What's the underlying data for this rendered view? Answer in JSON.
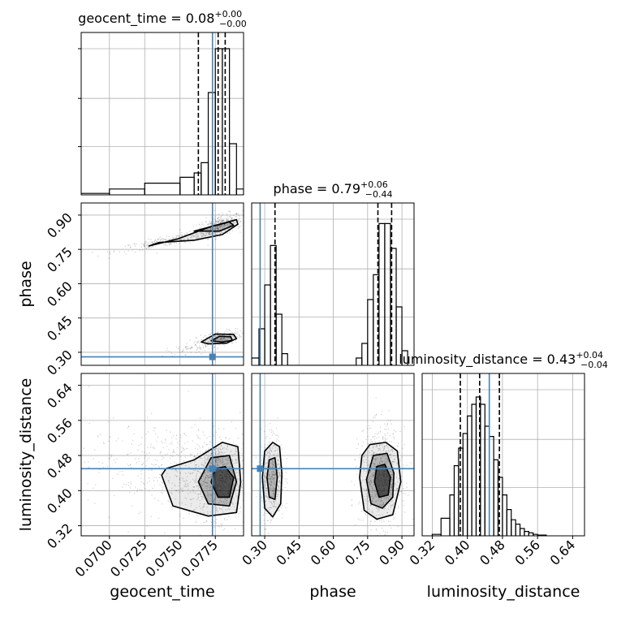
{
  "chart_data": {
    "type": "corner",
    "parameters": [
      "geocent_time",
      "phase",
      "luminosity_distance"
    ],
    "titles": [
      {
        "param": "geocent_time",
        "prefix": "geocent_time = ",
        "median": "0.08",
        "plus": "+0.00",
        "minus": "−0.00"
      },
      {
        "param": "phase",
        "prefix": "phase = ",
        "median": "0.79",
        "plus": "+0.06",
        "minus": "−0.44"
      },
      {
        "param": "luminosity_distance",
        "prefix": "luminosity_distance = ",
        "median": "0.43",
        "plus": "+0.04",
        "minus": "−0.04"
      }
    ],
    "ranges": {
      "geocent_time": [
        0.068,
        0.0795
      ],
      "phase": [
        0.243,
        0.953
      ],
      "luminosity_distance": [
        0.297,
        0.667
      ]
    },
    "ticks": {
      "geocent_time": [
        "0.0700",
        "0.0725",
        "0.0750",
        "0.0775"
      ],
      "phase": [
        "0.30",
        "0.45",
        "0.60",
        "0.75",
        "0.90"
      ],
      "luminosity_distance": [
        "0.32",
        "0.40",
        "0.48",
        "0.56",
        "0.64"
      ]
    },
    "truths": {
      "geocent_time": 0.0773,
      "phase": 0.28,
      "luminosity_distance": 0.45
    },
    "quantiles": {
      "geocent_time": [
        0.0763,
        0.0777,
        0.0782
      ],
      "phase": [
        0.345,
        0.795,
        0.855
      ],
      "luminosity_distance": [
        0.384,
        0.428,
        0.473
      ]
    },
    "histograms": {
      "geocent_time": {
        "edges": [
          0.068,
          0.07,
          0.0725,
          0.075,
          0.076,
          0.0765,
          0.077,
          0.0775,
          0.078,
          0.0785,
          0.079,
          0.0795
        ],
        "counts": [
          0.01,
          0.04,
          0.08,
          0.12,
          0.15,
          0.22,
          0.7,
          1.0,
          1.0,
          0.35,
          0.04
        ]
      },
      "phase": {
        "edges": [
          0.243,
          0.275,
          0.3,
          0.325,
          0.35,
          0.375,
          0.4,
          0.7,
          0.725,
          0.75,
          0.775,
          0.8,
          0.825,
          0.85,
          0.875,
          0.9,
          0.925
        ],
        "counts": [
          0.05,
          0.25,
          0.55,
          0.82,
          0.35,
          0.08,
          0.0,
          0.05,
          0.15,
          0.45,
          0.62,
          0.97,
          0.97,
          0.8,
          0.4,
          0.1
        ],
        "fill_gaps": false
      },
      "luminosity_distance": {
        "edges": [
          0.32,
          0.34,
          0.36,
          0.37,
          0.38,
          0.39,
          0.4,
          0.41,
          0.42,
          0.43,
          0.44,
          0.45,
          0.46,
          0.47,
          0.48,
          0.49,
          0.5,
          0.51,
          0.52,
          0.53,
          0.54,
          0.55,
          0.56,
          0.58
        ],
        "counts": [
          0.01,
          0.12,
          0.28,
          0.48,
          0.6,
          0.7,
          0.82,
          0.9,
          0.95,
          0.9,
          0.75,
          0.68,
          0.52,
          0.4,
          0.28,
          0.18,
          0.11,
          0.08,
          0.05,
          0.03,
          0.02,
          0.01,
          0.005
        ]
      }
    },
    "contours": {
      "phase_vs_geocent_time": [
        {
          "level": 0.95,
          "points": [
            [
              0.0728,
              0.765
            ],
            [
              0.0748,
              0.795
            ],
            [
              0.0772,
              0.85
            ],
            [
              0.079,
              0.88
            ],
            [
              0.0791,
              0.86
            ],
            [
              0.078,
              0.815
            ],
            [
              0.076,
              0.79
            ],
            [
              0.0735,
              0.78
            ]
          ]
        },
        {
          "level": 0.8,
          "points": [
            [
              0.076,
              0.83
            ],
            [
              0.0785,
              0.87
            ],
            [
              0.0788,
              0.855
            ],
            [
              0.0778,
              0.83
            ]
          ]
        },
        {
          "level": 0.95,
          "points": [
            [
              0.0765,
              0.345
            ],
            [
              0.0775,
              0.38
            ],
            [
              0.0788,
              0.378
            ],
            [
              0.079,
              0.36
            ],
            [
              0.0783,
              0.34
            ],
            [
              0.077,
              0.337
            ]
          ]
        },
        {
          "level": 0.8,
          "points": [
            [
              0.0772,
              0.35
            ],
            [
              0.0778,
              0.37
            ],
            [
              0.0786,
              0.368
            ],
            [
              0.0787,
              0.352
            ],
            [
              0.078,
              0.345
            ]
          ]
        }
      ],
      "luminosity_distance_vs_geocent_time": [
        {
          "level": 0.95,
          "points": [
            [
              0.0737,
              0.435
            ],
            [
              0.0745,
              0.365
            ],
            [
              0.077,
              0.342
            ],
            [
              0.079,
              0.35
            ],
            [
              0.0793,
              0.42
            ],
            [
              0.0791,
              0.5
            ],
            [
              0.078,
              0.51
            ],
            [
              0.076,
              0.47
            ],
            [
              0.074,
              0.45
            ]
          ]
        },
        {
          "level": 0.8,
          "points": [
            [
              0.0763,
              0.42
            ],
            [
              0.077,
              0.37
            ],
            [
              0.0785,
              0.365
            ],
            [
              0.079,
              0.42
            ],
            [
              0.0785,
              0.48
            ],
            [
              0.0772,
              0.475
            ]
          ]
        },
        {
          "level": 0.5,
          "points": [
            [
              0.0772,
              0.42
            ],
            [
              0.0777,
              0.385
            ],
            [
              0.0785,
              0.385
            ],
            [
              0.0788,
              0.43
            ],
            [
              0.0782,
              0.455
            ],
            [
              0.0775,
              0.45
            ]
          ]
        }
      ],
      "luminosity_distance_vs_phase": [
        {
          "level": 0.95,
          "points": [
            [
              0.29,
              0.43
            ],
            [
              0.3,
              0.36
            ],
            [
              0.335,
              0.34
            ],
            [
              0.37,
              0.37
            ],
            [
              0.375,
              0.44
            ],
            [
              0.365,
              0.5
            ],
            [
              0.335,
              0.51
            ],
            [
              0.3,
              0.49
            ]
          ]
        },
        {
          "level": 0.8,
          "points": [
            [
              0.31,
              0.43
            ],
            [
              0.32,
              0.385
            ],
            [
              0.345,
              0.38
            ],
            [
              0.355,
              0.43
            ],
            [
              0.345,
              0.475
            ],
            [
              0.32,
              0.47
            ]
          ]
        },
        {
          "level": 0.95,
          "points": [
            [
              0.715,
              0.43
            ],
            [
              0.735,
              0.355
            ],
            [
              0.79,
              0.335
            ],
            [
              0.86,
              0.345
            ],
            [
              0.895,
              0.42
            ],
            [
              0.88,
              0.49
            ],
            [
              0.83,
              0.51
            ],
            [
              0.76,
              0.505
            ],
            [
              0.725,
              0.48
            ]
          ]
        },
        {
          "level": 0.8,
          "points": [
            [
              0.745,
              0.425
            ],
            [
              0.765,
              0.37
            ],
            [
              0.815,
              0.36
            ],
            [
              0.86,
              0.385
            ],
            [
              0.865,
              0.44
            ],
            [
              0.835,
              0.485
            ],
            [
              0.775,
              0.48
            ]
          ]
        },
        {
          "level": 0.5,
          "points": [
            [
              0.78,
              0.42
            ],
            [
              0.8,
              0.385
            ],
            [
              0.84,
              0.39
            ],
            [
              0.85,
              0.43
            ],
            [
              0.825,
              0.46
            ],
            [
              0.79,
              0.455
            ]
          ]
        }
      ]
    },
    "colors": {
      "truth": "#4682b4",
      "hist": "#000000",
      "grid": "#b0b0b0",
      "density": "#000000"
    }
  }
}
